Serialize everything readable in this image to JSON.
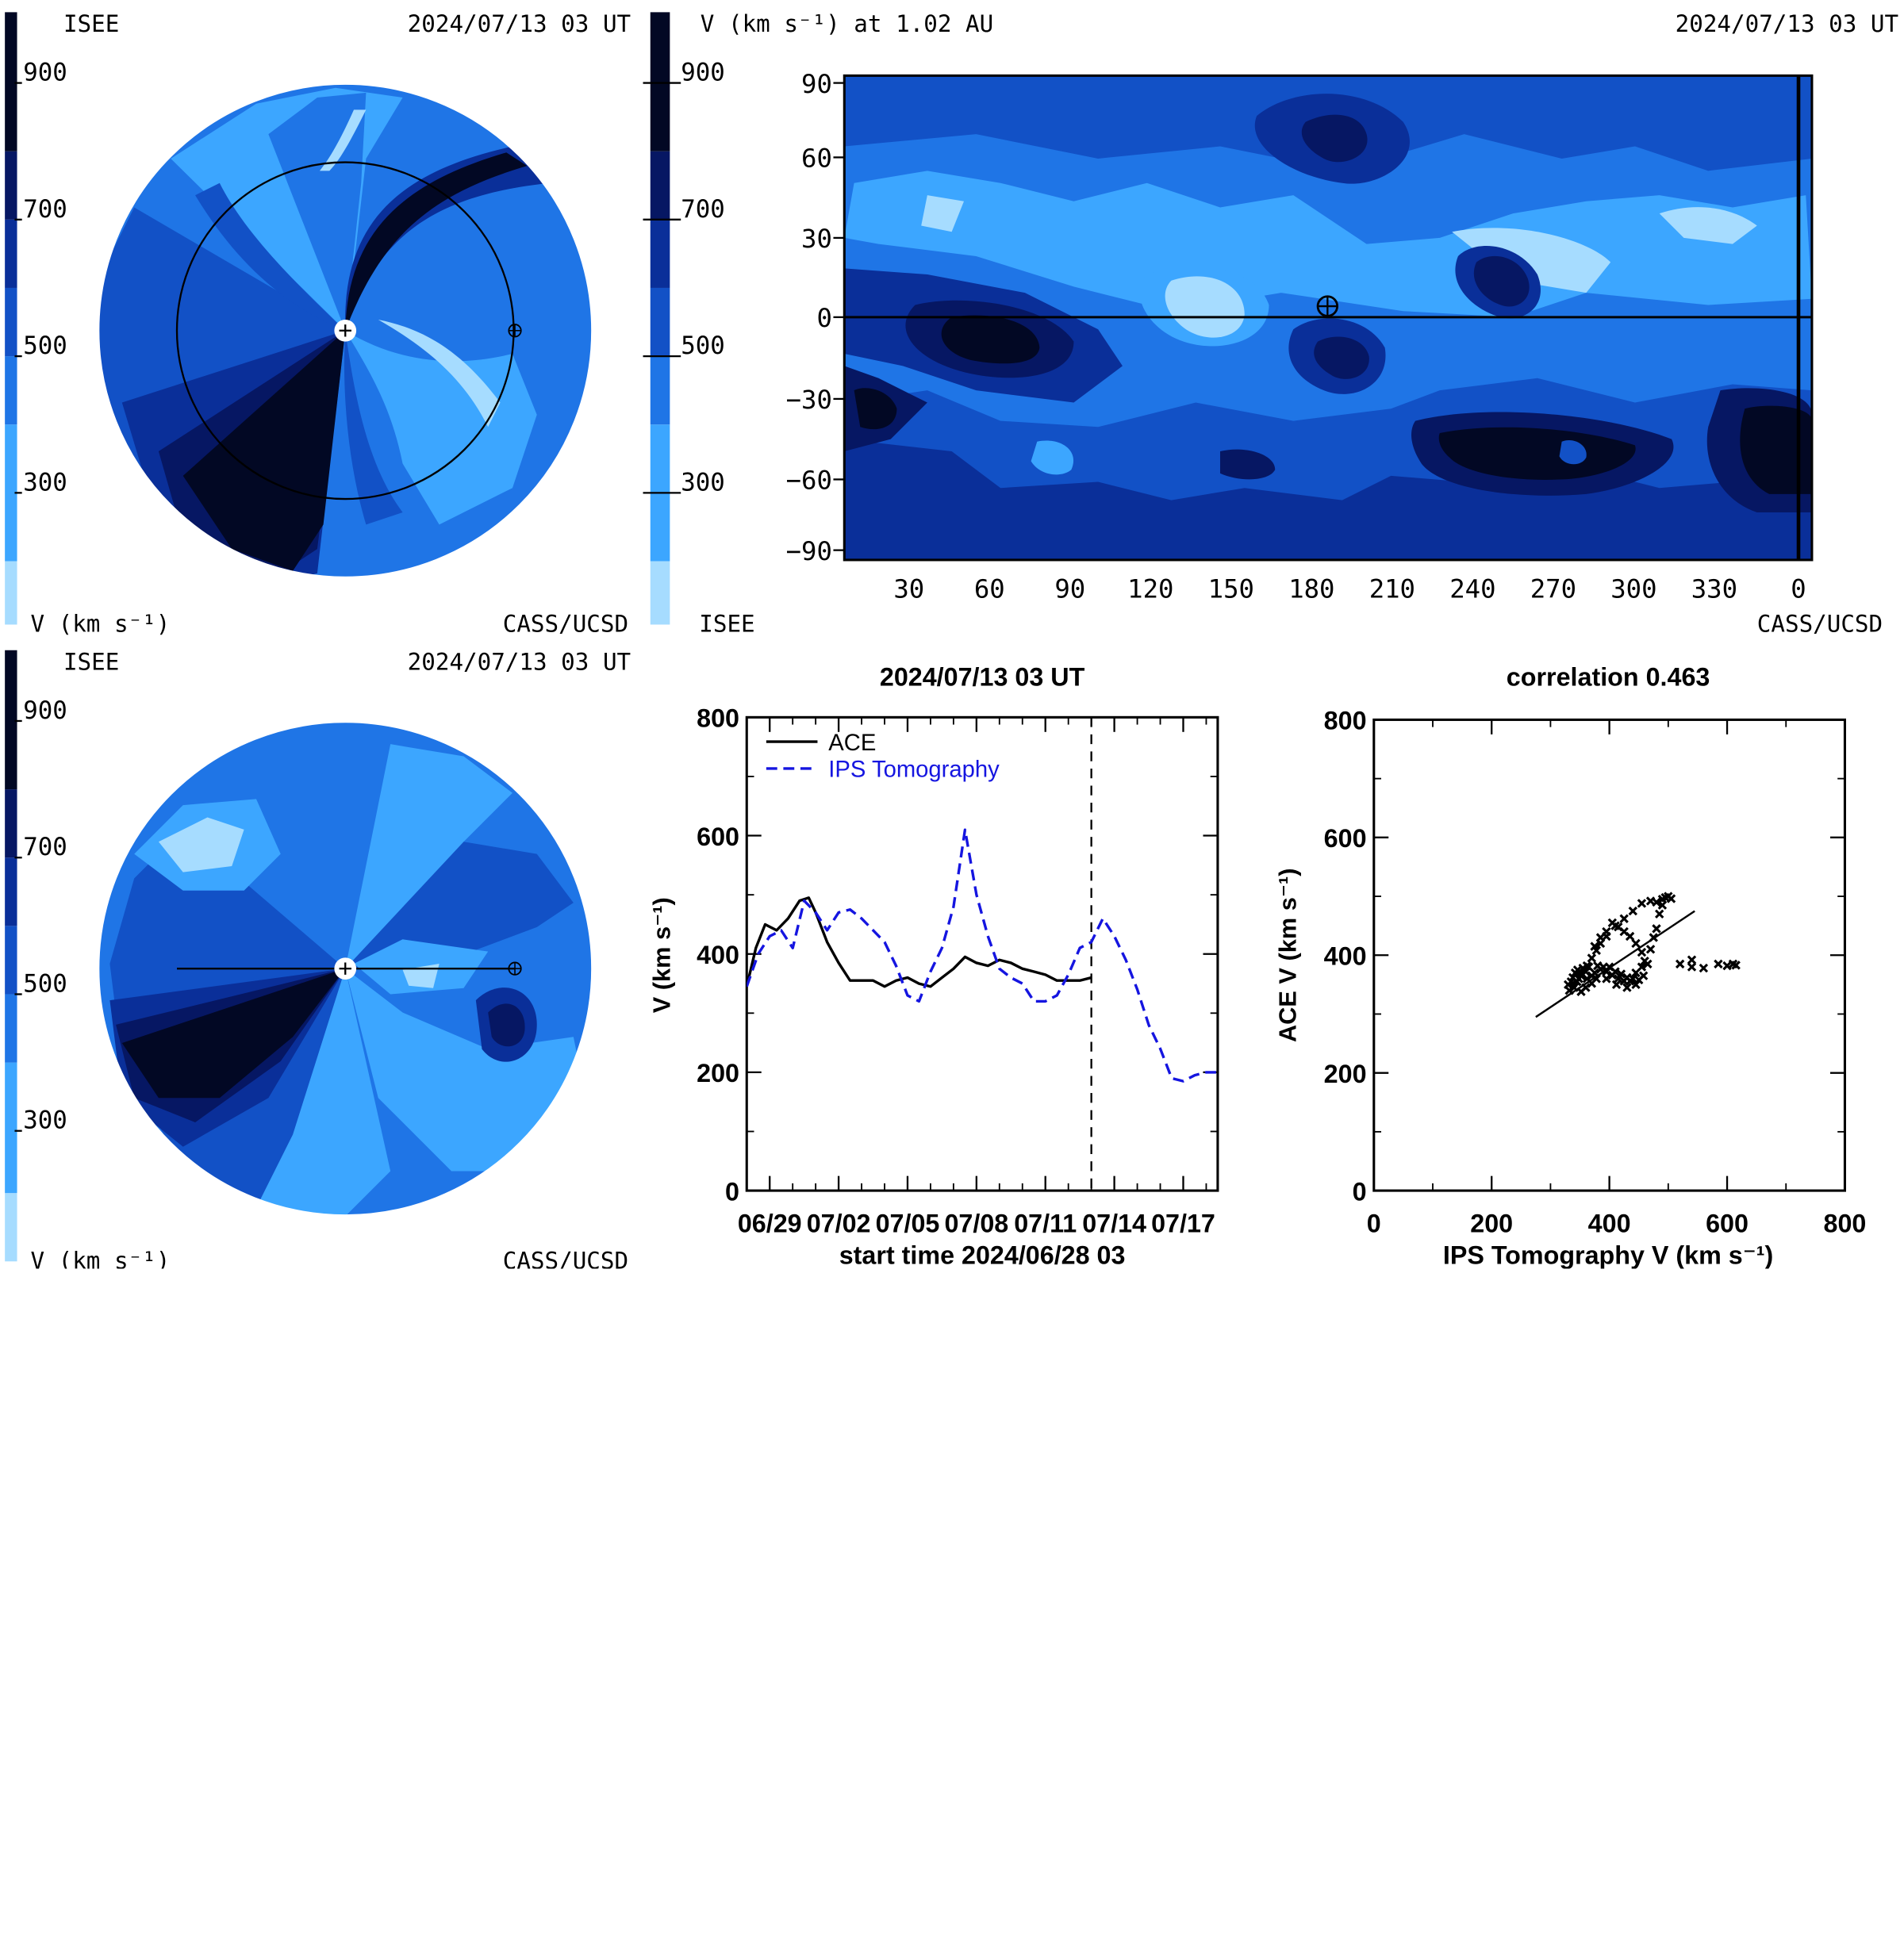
{
  "top_left": {
    "org": "ISEE",
    "time": "2024/07/13 03 UT",
    "unit": "V (km s⁻¹)",
    "credit": "CASS/UCSD",
    "colorbar_ticks": [
      "900",
      "700",
      "500",
      "300"
    ]
  },
  "bottom_left": {
    "org": "ISEE",
    "time": "2024/07/13 03 UT",
    "unit": "V (km s⁻¹)",
    "credit": "CASS/UCSD",
    "colorbar_ticks": [
      "900",
      "700",
      "500",
      "300"
    ]
  },
  "map": {
    "title": "V (km s⁻¹) at 1.02 AU",
    "time": "2024/07/13 03 UT",
    "org": "ISEE",
    "credit": "CASS/UCSD",
    "colorbar_ticks": [
      "900",
      "700",
      "500",
      "300"
    ],
    "y_ticks": [
      "90",
      "60",
      "30",
      "0",
      "−30",
      "−60",
      "−90"
    ],
    "x_ticks": [
      "30",
      "60",
      "90",
      "120",
      "150",
      "180",
      "210",
      "240",
      "270",
      "300",
      "330",
      "0"
    ]
  },
  "palette": {
    "level_1": "#a6dcff",
    "level_2": "#3ca6ff",
    "level_3": "#1f75e6",
    "level_4": "#1251c6",
    "level_5": "#0a2f99",
    "level_6": "#061763",
    "level_7": "#020824",
    "series_ace": "#000000",
    "series_ips": "#1515e0"
  },
  "chart_data": [
    {
      "type": "line",
      "title": "2024/07/13 03 UT",
      "xlabel": "start time 2024/06/28 03",
      "ylabel": "V (km s⁻¹)",
      "x_tick_labels": [
        "06/29",
        "07/02",
        "07/05",
        "07/08",
        "07/11",
        "07/14",
        "07/17"
      ],
      "y_tick_labels": [
        "800",
        "600",
        "400",
        "200",
        "0"
      ],
      "xlim": [
        0,
        20.5
      ],
      "ylim": [
        0,
        800
      ],
      "vline_day": 15.0,
      "series": [
        {
          "name": "ACE",
          "style": "solid",
          "x": [
            0,
            0.4,
            0.8,
            1.3,
            1.8,
            2.3,
            2.7,
            3.0,
            3.5,
            4.0,
            4.5,
            5.0,
            5.5,
            6.0,
            6.5,
            7.0,
            7.5,
            8.0,
            8.5,
            9.0,
            9.5,
            10.0,
            10.5,
            11.0,
            11.5,
            12.0,
            12.5,
            13.0,
            13.5,
            14.0,
            14.5,
            15.0
          ],
          "y": [
            345,
            410,
            450,
            440,
            460,
            490,
            495,
            470,
            420,
            385,
            355,
            355,
            355,
            345,
            355,
            360,
            350,
            345,
            360,
            375,
            395,
            385,
            380,
            390,
            385,
            375,
            370,
            365,
            355,
            355,
            355,
            360
          ]
        },
        {
          "name": "IPS Tomography",
          "style": "dashed",
          "x": [
            0,
            0.5,
            1.0,
            1.5,
            2.0,
            2.5,
            3.0,
            3.5,
            4.0,
            4.5,
            5.0,
            5.5,
            6.0,
            6.5,
            7.0,
            7.5,
            8.0,
            8.5,
            9.0,
            9.5,
            10.0,
            10.5,
            11.0,
            11.5,
            12.0,
            12.5,
            13.0,
            13.5,
            14.0,
            14.5,
            15.0,
            15.5,
            16.0,
            16.5,
            17.0,
            17.5,
            18.0,
            18.5,
            19.0,
            19.5,
            20.0,
            20.5
          ],
          "y": [
            345,
            400,
            430,
            440,
            410,
            490,
            470,
            440,
            470,
            475,
            460,
            440,
            420,
            380,
            330,
            320,
            370,
            410,
            480,
            610,
            500,
            430,
            375,
            360,
            350,
            320,
            320,
            330,
            365,
            410,
            420,
            460,
            430,
            390,
            340,
            280,
            240,
            190,
            185,
            195,
            200,
            200
          ]
        }
      ],
      "legend": "top-left"
    },
    {
      "type": "scatter",
      "title": "correlation 0.463",
      "xlabel": "IPS Tomography V (km s⁻¹)",
      "ylabel": "ACE V (km s⁻¹)",
      "x_tick_labels": [
        "0",
        "200",
        "400",
        "600",
        "800"
      ],
      "y_tick_labels": [
        "800",
        "600",
        "400",
        "200",
        "0"
      ],
      "xlim": [
        0,
        800
      ],
      "ylim": [
        0,
        800
      ],
      "fit_line": {
        "x": [
          275,
          545
        ],
        "y": [
          295,
          475
        ]
      },
      "points": [
        [
          330,
          350
        ],
        [
          335,
          355
        ],
        [
          338,
          362
        ],
        [
          342,
          370
        ],
        [
          346,
          375
        ],
        [
          350,
          368
        ],
        [
          355,
          378
        ],
        [
          360,
          372
        ],
        [
          365,
          380
        ],
        [
          370,
          365
        ],
        [
          375,
          370
        ],
        [
          380,
          382
        ],
        [
          385,
          376
        ],
        [
          390,
          380
        ],
        [
          395,
          372
        ],
        [
          400,
          380
        ],
        [
          405,
          366
        ],
        [
          410,
          372
        ],
        [
          415,
          360
        ],
        [
          420,
          368
        ],
        [
          425,
          356
        ],
        [
          430,
          362
        ],
        [
          435,
          356
        ],
        [
          440,
          360
        ],
        [
          445,
          370
        ],
        [
          450,
          358
        ],
        [
          455,
          380
        ],
        [
          460,
          390
        ],
        [
          455,
          405
        ],
        [
          445,
          420
        ],
        [
          435,
          432
        ],
        [
          425,
          440
        ],
        [
          415,
          448
        ],
        [
          405,
          455
        ],
        [
          395,
          432
        ],
        [
          385,
          420
        ],
        [
          378,
          408
        ],
        [
          370,
          395
        ],
        [
          362,
          382
        ],
        [
          352,
          365
        ],
        [
          345,
          355
        ],
        [
          340,
          345
        ],
        [
          332,
          340
        ],
        [
          338,
          352
        ],
        [
          348,
          360
        ],
        [
          362,
          360
        ],
        [
          378,
          360
        ],
        [
          395,
          360
        ],
        [
          412,
          350
        ],
        [
          430,
          345
        ],
        [
          445,
          350
        ],
        [
          458,
          365
        ],
        [
          465,
          385
        ],
        [
          470,
          410
        ],
        [
          475,
          430
        ],
        [
          480,
          445
        ],
        [
          485,
          470
        ],
        [
          490,
          485
        ],
        [
          470,
          492
        ],
        [
          455,
          488
        ],
        [
          440,
          475
        ],
        [
          425,
          462
        ],
        [
          410,
          450
        ],
        [
          395,
          440
        ],
        [
          385,
          430
        ],
        [
          375,
          415
        ],
        [
          480,
          490
        ],
        [
          490,
          495
        ],
        [
          495,
          498
        ],
        [
          500,
          500
        ],
        [
          505,
          496
        ],
        [
          520,
          385
        ],
        [
          540,
          380
        ],
        [
          560,
          378
        ],
        [
          585,
          385
        ],
        [
          600,
          382
        ],
        [
          610,
          385
        ],
        [
          615,
          383
        ],
        [
          540,
          392
        ],
        [
          370,
          352
        ],
        [
          360,
          345
        ],
        [
          352,
          338
        ]
      ]
    }
  ]
}
